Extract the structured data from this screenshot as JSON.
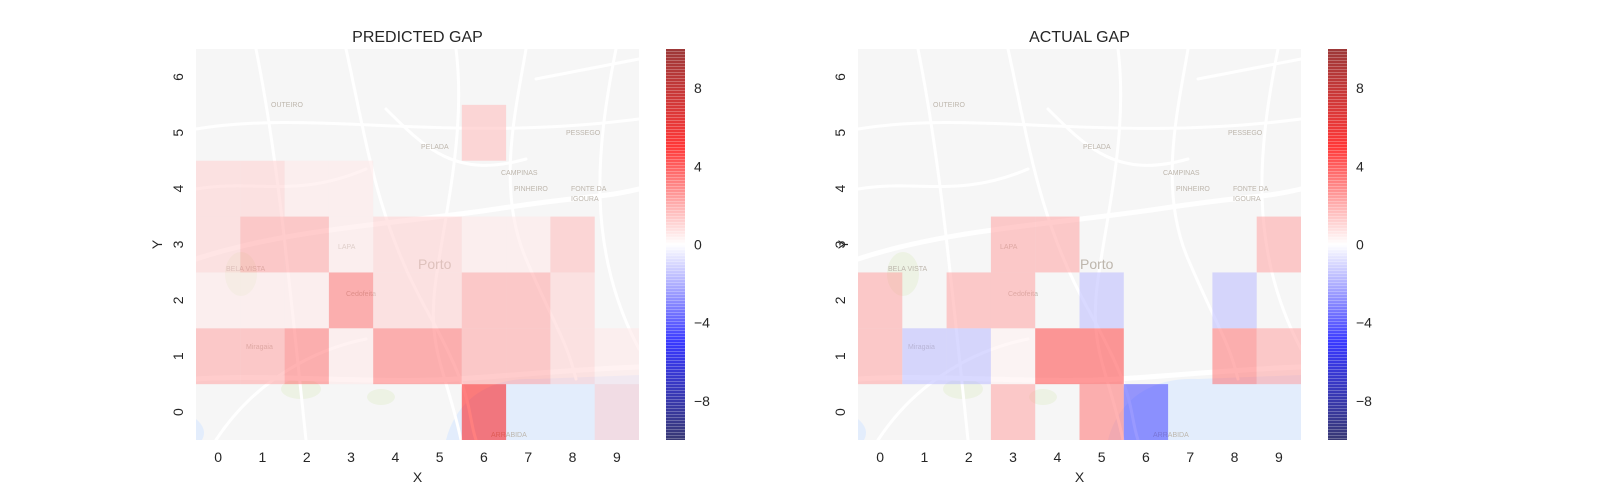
{
  "chart_data": [
    {
      "type": "heatmap",
      "title": "PREDICTED GAP",
      "xlabel": "X",
      "ylabel": "Y",
      "x": [
        0,
        1,
        2,
        3,
        4,
        5,
        6,
        7,
        8,
        9
      ],
      "y": [
        0,
        1,
        2,
        3,
        4,
        5,
        6
      ],
      "z": [
        [
          0,
          0,
          0,
          0,
          0,
          0,
          5,
          0,
          0,
          1
        ],
        [
          2,
          2,
          3,
          0.5,
          3,
          3,
          2,
          2,
          1,
          0.5
        ],
        [
          0.5,
          0.5,
          0.5,
          3,
          1,
          1,
          2,
          2,
          1,
          0
        ],
        [
          1,
          2,
          2,
          0.5,
          1,
          1,
          0.5,
          0.5,
          1.5,
          0
        ],
        [
          1,
          1,
          0.5,
          0.5,
          0,
          0,
          0,
          0,
          0,
          0
        ],
        [
          0,
          0,
          0,
          0,
          0,
          0,
          1.5,
          0,
          0,
          0
        ],
        [
          0,
          0,
          0,
          0,
          0,
          0,
          0,
          0,
          0,
          0
        ]
      ],
      "colorbar": {
        "range": [
          -10,
          10
        ],
        "ticks": [
          "8",
          "4",
          "0",
          "−4",
          "−8"
        ],
        "cmap": "seismic"
      },
      "background": "street-map",
      "grid": false
    },
    {
      "type": "heatmap",
      "title": "ACTUAL GAP",
      "xlabel": "X",
      "ylabel": "Y",
      "x": [
        0,
        1,
        2,
        3,
        4,
        5,
        6,
        7,
        8,
        9
      ],
      "y": [
        0,
        1,
        2,
        3,
        4,
        5,
        6
      ],
      "z": [
        [
          0,
          0,
          0,
          2,
          0,
          3,
          -4,
          0,
          0,
          0
        ],
        [
          2,
          -1.5,
          -1.5,
          0.3,
          4,
          4,
          0,
          0,
          3,
          2
        ],
        [
          2,
          0,
          2,
          2,
          0,
          -1.5,
          0,
          0,
          -1.5,
          0
        ],
        [
          0,
          0,
          0,
          2,
          2,
          0,
          0,
          0,
          0,
          2
        ],
        [
          0,
          0,
          0,
          0,
          0,
          0,
          0,
          0,
          0,
          0
        ],
        [
          0,
          0,
          0,
          0,
          0,
          0,
          0,
          0,
          0,
          0
        ],
        [
          0,
          0,
          0,
          0,
          0,
          0,
          0,
          0,
          0,
          0
        ]
      ],
      "colorbar": {
        "range": [
          -10,
          10
        ],
        "ticks": [
          "8",
          "4",
          "0",
          "−4",
          "−8"
        ],
        "cmap": "seismic"
      },
      "background": "street-map",
      "grid": false
    }
  ],
  "map_labels": [
    "OUTEIRO",
    "PESSEGO",
    "PELADA",
    "CAMPINAS",
    "PINHEIRO",
    "FONTE DA",
    "IGOURA",
    "LAPA",
    "BELA VISTA",
    "Porto",
    "ARRABIDA",
    "Miragaia",
    "Cedofeita"
  ],
  "colors": {
    "map_bg": "#f2f2f2",
    "road": "#ffffff",
    "water": "#d4e4fb",
    "park": "#e3ecd6",
    "text": "#262626"
  }
}
